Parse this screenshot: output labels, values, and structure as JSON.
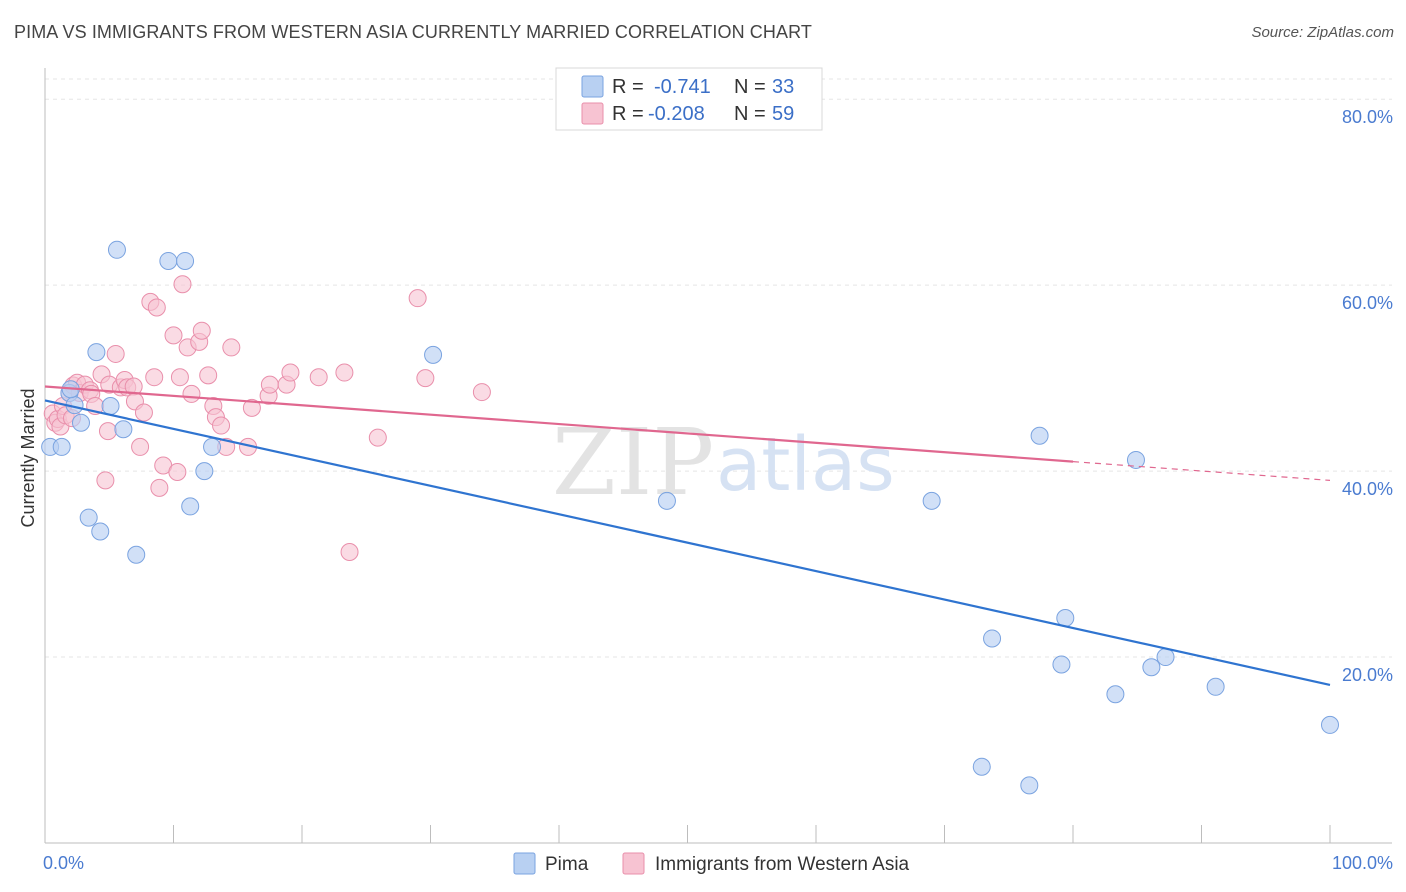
{
  "title": "PIMA VS IMMIGRANTS FROM WESTERN ASIA CURRENTLY MARRIED CORRELATION CHART",
  "source": "Source: ZipAtlas.com",
  "watermark": {
    "zip": "ZIP",
    "atlas": "atlas"
  },
  "colors": {
    "pima_fill": "#b8d0f2",
    "pima_stroke": "#7aa3e0",
    "pima_line": "#2f74d0",
    "wa_fill": "#f7c3d2",
    "wa_stroke": "#e98fab",
    "wa_line": "#e0678f",
    "grid": "#e5e5e5",
    "tick_text": "#4a7bd0"
  },
  "legend": {
    "rows": [
      {
        "r_label": "R =",
        "r_value": "-0.741",
        "n_label": "N =",
        "n_value": "33"
      },
      {
        "r_label": "R =",
        "r_value": "-0.208",
        "n_label": "N =",
        "n_value": "59"
      }
    ]
  },
  "chart_data": {
    "type": "scatter",
    "ylabel": "Currently Married",
    "xlim": [
      0,
      100
    ],
    "ylim": [
      0,
      84
    ],
    "x_tick_labels": [
      {
        "value": 0,
        "label": "0.0%"
      },
      {
        "value": 100,
        "label": "100.0%"
      }
    ],
    "y_ticks": [
      {
        "value": 20,
        "label": "20.0%"
      },
      {
        "value": 40,
        "label": "40.0%"
      },
      {
        "value": 60,
        "label": "60.0%"
      },
      {
        "value": 80,
        "label": "80.0%"
      }
    ],
    "grid": true,
    "legend_position": "top-center",
    "series": [
      {
        "name": "Pima",
        "trend": {
          "x0": 0,
          "y0": 47.6,
          "x1": 100,
          "y1": 17.0,
          "solid_until": 100
        },
        "points": [
          [
            0.4,
            42.6
          ],
          [
            1.3,
            42.6
          ],
          [
            1.9,
            48.4
          ],
          [
            2.3,
            47.1
          ],
          [
            2.8,
            45.2
          ],
          [
            3.4,
            35.0
          ],
          [
            4.0,
            52.8
          ],
          [
            4.3,
            33.5
          ],
          [
            5.1,
            47.0
          ],
          [
            5.6,
            63.8
          ],
          [
            6.1,
            44.5
          ],
          [
            7.1,
            31.0
          ],
          [
            9.6,
            62.6
          ],
          [
            10.9,
            62.6
          ],
          [
            11.3,
            36.2
          ],
          [
            12.4,
            40.0
          ],
          [
            13.0,
            42.6
          ],
          [
            30.2,
            52.5
          ],
          [
            48.4,
            36.8
          ],
          [
            69.0,
            36.8
          ],
          [
            72.9,
            8.2
          ],
          [
            73.7,
            22.0
          ],
          [
            76.6,
            6.2
          ],
          [
            77.4,
            43.8
          ],
          [
            79.1,
            19.2
          ],
          [
            79.4,
            24.2
          ],
          [
            83.3,
            16.0
          ],
          [
            84.9,
            41.2
          ],
          [
            86.1,
            18.9
          ],
          [
            87.2,
            20.0
          ],
          [
            91.1,
            16.8
          ],
          [
            100.0,
            12.7
          ],
          [
            2.0,
            48.8
          ]
        ]
      },
      {
        "name": "Immigrants from Western Asia",
        "trend": {
          "x0": 0,
          "y0": 49.1,
          "x1": 100,
          "y1": 39.0,
          "solid_until": 80
        },
        "points": [
          [
            0.6,
            46.2
          ],
          [
            0.8,
            45.2
          ],
          [
            1.0,
            45.6
          ],
          [
            1.2,
            44.8
          ],
          [
            1.4,
            47.0
          ],
          [
            1.6,
            46.0
          ],
          [
            1.9,
            48.4
          ],
          [
            2.1,
            45.7
          ],
          [
            2.2,
            49.2
          ],
          [
            2.5,
            49.5
          ],
          [
            2.7,
            48.4
          ],
          [
            3.1,
            49.3
          ],
          [
            3.5,
            48.7
          ],
          [
            3.6,
            48.3
          ],
          [
            3.9,
            47.0
          ],
          [
            4.4,
            50.4
          ],
          [
            4.7,
            39.0
          ],
          [
            4.9,
            44.3
          ],
          [
            5.0,
            49.3
          ],
          [
            5.5,
            52.6
          ],
          [
            5.9,
            49.0
          ],
          [
            6.2,
            49.8
          ],
          [
            6.4,
            49.0
          ],
          [
            6.9,
            49.1
          ],
          [
            7.0,
            47.5
          ],
          [
            7.4,
            42.6
          ],
          [
            7.7,
            46.3
          ],
          [
            8.2,
            58.2
          ],
          [
            8.5,
            50.1
          ],
          [
            8.7,
            57.6
          ],
          [
            8.9,
            38.2
          ],
          [
            9.2,
            40.6
          ],
          [
            10.0,
            54.6
          ],
          [
            10.3,
            39.9
          ],
          [
            10.5,
            50.1
          ],
          [
            10.7,
            60.1
          ],
          [
            11.1,
            53.3
          ],
          [
            11.4,
            48.3
          ],
          [
            12.0,
            53.9
          ],
          [
            12.2,
            55.1
          ],
          [
            12.7,
            50.3
          ],
          [
            13.1,
            47.0
          ],
          [
            13.3,
            45.8
          ],
          [
            13.7,
            44.9
          ],
          [
            14.1,
            42.6
          ],
          [
            14.5,
            53.3
          ],
          [
            15.8,
            42.6
          ],
          [
            16.1,
            46.8
          ],
          [
            17.4,
            48.1
          ],
          [
            17.5,
            49.3
          ],
          [
            18.8,
            49.3
          ],
          [
            19.1,
            50.6
          ],
          [
            21.3,
            50.1
          ],
          [
            23.3,
            50.6
          ],
          [
            23.7,
            31.3
          ],
          [
            25.9,
            43.6
          ],
          [
            29.0,
            58.6
          ],
          [
            29.6,
            50.0
          ],
          [
            34.0,
            48.5
          ]
        ]
      }
    ]
  },
  "bottom_legend": [
    {
      "label": "Pima"
    },
    {
      "label": "Immigrants from Western Asia"
    }
  ]
}
